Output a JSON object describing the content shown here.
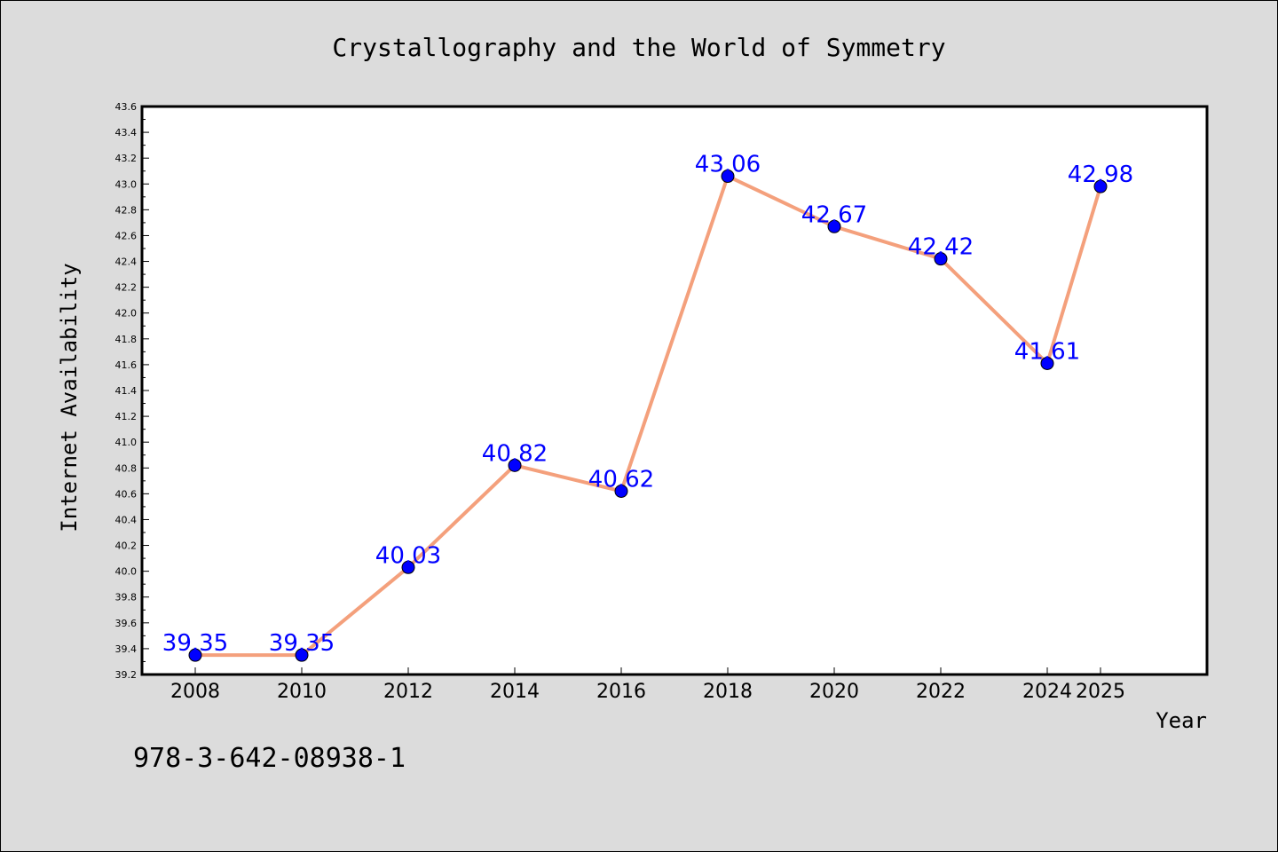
{
  "chart_data": {
    "type": "line",
    "title": "Crystallography and the World of Symmetry",
    "xlabel": "Year",
    "ylabel": "Internet Availability",
    "footnote": "978-3-642-08938-1",
    "categories": [
      "2008",
      "2010",
      "2012",
      "2014",
      "2016",
      "2018",
      "2020",
      "2022",
      "2024",
      "2025"
    ],
    "series": [
      {
        "values": [
          39.35,
          39.35,
          40.03,
          40.82,
          40.62,
          43.06,
          42.67,
          42.42,
          41.61,
          42.98
        ],
        "labels": [
          "39.35",
          "39.35",
          "40.03",
          "40.82",
          "40.62",
          "43.06",
          "42.67",
          "42.42",
          "41.61",
          "42.98"
        ]
      }
    ],
    "ylim": [
      39.2,
      43.6
    ],
    "yticks": [
      "39.2",
      "39.4",
      "39.6",
      "39.8",
      "40.0",
      "40.2",
      "40.4",
      "40.6",
      "40.8",
      "41.0",
      "41.2",
      "41.4",
      "41.6",
      "41.8",
      "42.0",
      "42.2",
      "42.4",
      "42.6",
      "42.8",
      "43.0",
      "43.2",
      "43.4",
      "43.6"
    ],
    "grid": false,
    "legend": "none",
    "colors": {
      "background": "#dcdcdc",
      "plot_area": "#ffffff",
      "line": "#f4a07c",
      "marker": "#0000ff",
      "data_label": "#0000ff",
      "axis": "#000000"
    }
  }
}
